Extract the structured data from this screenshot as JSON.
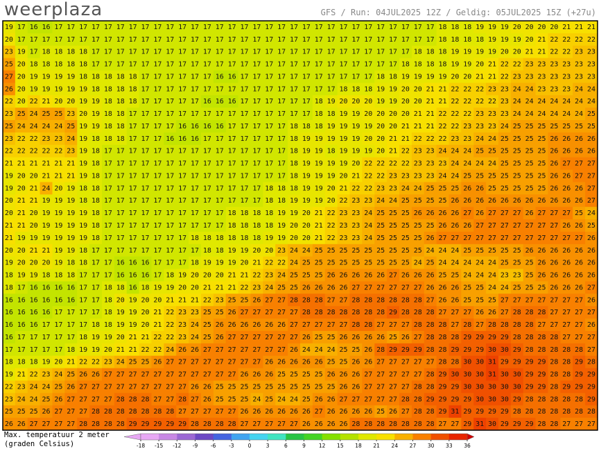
{
  "header": {
    "logo": "weerplaza",
    "info": "GFS / Run: 04JUL2025 12Z / Geldig: 05JUL2025 15Z (+27u)"
  },
  "legend": {
    "title": "Max. temperatuur 2 meter",
    "unit": "(graden Celsius)",
    "ticks": [
      -18,
      -15,
      -12,
      -9,
      -6,
      -3,
      0,
      3,
      6,
      9,
      12,
      15,
      18,
      21,
      24,
      27,
      30,
      33,
      36
    ],
    "colors": [
      "#e8a8f4",
      "#c888e4",
      "#9c68d4",
      "#6c48c4",
      "#4464e0",
      "#40a4f0",
      "#44d4f0",
      "#40e4c0",
      "#28c444",
      "#44d424",
      "#84e000",
      "#b4e200",
      "#e0e800",
      "#f8e000",
      "#f8b000",
      "#f88000",
      "#f05000",
      "#e82400",
      "#d00000"
    ]
  },
  "grid": [
    [
      19,
      17,
      16,
      16,
      17,
      17,
      17,
      17,
      17,
      17,
      17,
      17,
      17,
      17,
      17,
      17,
      17,
      17,
      17,
      17,
      17,
      17,
      17,
      17,
      17,
      17,
      17,
      17,
      17,
      17,
      17,
      17,
      17,
      17,
      17,
      18,
      18,
      18,
      19,
      19,
      19,
      20,
      20,
      20,
      20,
      21,
      21,
      21
    ],
    [
      20,
      17,
      17,
      17,
      17,
      17,
      17,
      17,
      17,
      17,
      17,
      17,
      17,
      17,
      17,
      17,
      17,
      17,
      17,
      17,
      17,
      17,
      17,
      17,
      17,
      17,
      17,
      17,
      17,
      17,
      17,
      17,
      17,
      17,
      17,
      18,
      18,
      18,
      18,
      19,
      19,
      19,
      20,
      21,
      22,
      22,
      22,
      22
    ],
    [
      23,
      19,
      17,
      18,
      18,
      18,
      18,
      17,
      17,
      17,
      17,
      17,
      17,
      17,
      17,
      17,
      17,
      17,
      17,
      17,
      17,
      17,
      17,
      17,
      17,
      17,
      17,
      17,
      17,
      17,
      17,
      17,
      17,
      18,
      18,
      18,
      19,
      19,
      19,
      19,
      20,
      20,
      21,
      21,
      22,
      22,
      23,
      23
    ],
    [
      25,
      20,
      18,
      18,
      18,
      18,
      18,
      17,
      17,
      17,
      17,
      17,
      17,
      17,
      17,
      17,
      17,
      17,
      17,
      17,
      17,
      17,
      17,
      17,
      17,
      17,
      17,
      17,
      17,
      17,
      17,
      17,
      18,
      18,
      18,
      18,
      19,
      19,
      20,
      21,
      22,
      22,
      23,
      23,
      23,
      23,
      23,
      23
    ],
    [
      27,
      20,
      19,
      19,
      19,
      19,
      18,
      18,
      18,
      18,
      18,
      17,
      17,
      17,
      17,
      17,
      17,
      16,
      16,
      17,
      17,
      17,
      17,
      17,
      17,
      17,
      17,
      17,
      17,
      17,
      18,
      18,
      19,
      19,
      19,
      19,
      20,
      20,
      21,
      21,
      22,
      23,
      23,
      23,
      23,
      23,
      23,
      23
    ],
    [
      26,
      20,
      19,
      19,
      19,
      19,
      19,
      18,
      18,
      18,
      18,
      17,
      17,
      17,
      17,
      17,
      17,
      17,
      17,
      17,
      17,
      17,
      17,
      17,
      17,
      17,
      17,
      18,
      18,
      18,
      19,
      19,
      20,
      20,
      21,
      21,
      22,
      22,
      22,
      23,
      23,
      24,
      24,
      23,
      23,
      23,
      24,
      24
    ],
    [
      22,
      20,
      22,
      21,
      20,
      20,
      19,
      19,
      18,
      18,
      18,
      17,
      17,
      17,
      17,
      17,
      16,
      16,
      16,
      17,
      17,
      17,
      17,
      17,
      17,
      18,
      19,
      20,
      20,
      20,
      19,
      19,
      20,
      20,
      21,
      21,
      22,
      22,
      22,
      22,
      23,
      24,
      24,
      24,
      24,
      24,
      24,
      24
    ],
    [
      23,
      25,
      24,
      25,
      25,
      23,
      20,
      19,
      18,
      18,
      17,
      17,
      17,
      17,
      17,
      17,
      17,
      17,
      17,
      17,
      17,
      17,
      17,
      17,
      17,
      18,
      18,
      19,
      19,
      20,
      20,
      20,
      20,
      21,
      21,
      22,
      22,
      22,
      23,
      23,
      23,
      24,
      24,
      24,
      24,
      24,
      24,
      25
    ],
    [
      25,
      24,
      24,
      24,
      24,
      25,
      19,
      19,
      18,
      18,
      17,
      17,
      17,
      17,
      16,
      16,
      16,
      16,
      17,
      17,
      17,
      17,
      17,
      18,
      18,
      18,
      19,
      19,
      19,
      19,
      20,
      20,
      21,
      21,
      21,
      22,
      22,
      23,
      23,
      23,
      24,
      25,
      25,
      25,
      25,
      25,
      25,
      25
    ],
    [
      23,
      22,
      22,
      23,
      23,
      24,
      19,
      18,
      18,
      18,
      17,
      17,
      17,
      16,
      16,
      16,
      17,
      17,
      17,
      17,
      17,
      17,
      17,
      18,
      19,
      19,
      19,
      19,
      19,
      20,
      20,
      21,
      21,
      22,
      22,
      22,
      23,
      23,
      24,
      24,
      25,
      25,
      25,
      25,
      26,
      26,
      26,
      26
    ],
    [
      22,
      22,
      22,
      22,
      22,
      23,
      19,
      18,
      17,
      17,
      17,
      17,
      17,
      17,
      17,
      17,
      17,
      17,
      17,
      17,
      17,
      17,
      17,
      18,
      19,
      19,
      18,
      19,
      19,
      19,
      20,
      21,
      22,
      23,
      23,
      24,
      24,
      24,
      25,
      25,
      25,
      25,
      25,
      25,
      26,
      26,
      26,
      26
    ],
    [
      21,
      21,
      21,
      21,
      21,
      21,
      19,
      18,
      17,
      17,
      17,
      17,
      17,
      17,
      17,
      17,
      17,
      17,
      17,
      17,
      17,
      17,
      17,
      18,
      19,
      19,
      19,
      19,
      20,
      22,
      22,
      22,
      22,
      23,
      23,
      23,
      24,
      24,
      24,
      24,
      25,
      25,
      25,
      25,
      26,
      27,
      27,
      27
    ],
    [
      19,
      20,
      20,
      21,
      21,
      21,
      19,
      18,
      17,
      17,
      17,
      17,
      17,
      17,
      17,
      17,
      17,
      17,
      17,
      17,
      17,
      17,
      17,
      18,
      19,
      19,
      19,
      20,
      21,
      22,
      22,
      23,
      23,
      23,
      23,
      24,
      24,
      25,
      25,
      25,
      25,
      25,
      25,
      25,
      26,
      26,
      27,
      27
    ],
    [
      19,
      20,
      21,
      24,
      20,
      19,
      18,
      18,
      17,
      17,
      17,
      17,
      17,
      17,
      17,
      17,
      17,
      17,
      17,
      17,
      17,
      18,
      18,
      18,
      19,
      19,
      20,
      21,
      22,
      22,
      23,
      23,
      24,
      24,
      25,
      25,
      25,
      26,
      26,
      25,
      25,
      25,
      25,
      25,
      26,
      26,
      26,
      27
    ],
    [
      20,
      21,
      21,
      19,
      19,
      19,
      18,
      18,
      17,
      17,
      17,
      17,
      17,
      17,
      17,
      17,
      17,
      17,
      17,
      17,
      17,
      18,
      18,
      19,
      19,
      19,
      20,
      22,
      23,
      23,
      24,
      24,
      25,
      25,
      25,
      25,
      26,
      26,
      26,
      26,
      26,
      26,
      26,
      26,
      26,
      26,
      26,
      27
    ],
    [
      20,
      21,
      20,
      19,
      19,
      19,
      19,
      18,
      17,
      17,
      17,
      17,
      17,
      17,
      17,
      17,
      17,
      17,
      18,
      18,
      18,
      18,
      19,
      19,
      20,
      21,
      22,
      23,
      23,
      24,
      25,
      25,
      25,
      26,
      26,
      26,
      26,
      27,
      26,
      27,
      27,
      27,
      26,
      27,
      27,
      27,
      25,
      24
    ],
    [
      21,
      21,
      20,
      19,
      19,
      19,
      19,
      18,
      17,
      17,
      17,
      17,
      17,
      17,
      17,
      17,
      17,
      17,
      18,
      18,
      18,
      18,
      19,
      20,
      20,
      21,
      22,
      23,
      23,
      24,
      25,
      25,
      25,
      25,
      25,
      26,
      26,
      26,
      27,
      27,
      27,
      27,
      27,
      27,
      27,
      26,
      26,
      25
    ],
    [
      21,
      19,
      19,
      19,
      19,
      19,
      19,
      18,
      17,
      17,
      17,
      17,
      17,
      17,
      17,
      18,
      18,
      18,
      18,
      18,
      18,
      19,
      19,
      20,
      20,
      21,
      22,
      23,
      23,
      24,
      25,
      25,
      25,
      25,
      26,
      27,
      27,
      27,
      27,
      27,
      27,
      27,
      27,
      27,
      27,
      27,
      27,
      26
    ],
    [
      20,
      20,
      21,
      21,
      19,
      19,
      18,
      17,
      17,
      17,
      17,
      17,
      17,
      17,
      17,
      17,
      18,
      18,
      19,
      19,
      20,
      20,
      23,
      24,
      24,
      25,
      25,
      25,
      25,
      25,
      25,
      25,
      25,
      25,
      24,
      24,
      24,
      25,
      25,
      25,
      25,
      25,
      26,
      26,
      26,
      26,
      26,
      26
    ],
    [
      19,
      20,
      20,
      20,
      19,
      18,
      18,
      17,
      17,
      16,
      16,
      16,
      17,
      17,
      17,
      18,
      19,
      19,
      19,
      20,
      21,
      22,
      22,
      24,
      25,
      25,
      25,
      25,
      25,
      25,
      25,
      25,
      25,
      24,
      25,
      24,
      24,
      24,
      24,
      24,
      25,
      25,
      25,
      26,
      26,
      26,
      26,
      26
    ],
    [
      18,
      19,
      19,
      18,
      18,
      18,
      17,
      17,
      17,
      16,
      16,
      16,
      17,
      18,
      19,
      20,
      20,
      20,
      21,
      21,
      22,
      23,
      24,
      25,
      25,
      25,
      26,
      26,
      26,
      26,
      26,
      27,
      26,
      26,
      26,
      25,
      25,
      24,
      24,
      24,
      23,
      23,
      25,
      26,
      26,
      26,
      26,
      26
    ],
    [
      18,
      17,
      16,
      16,
      16,
      16,
      17,
      17,
      18,
      18,
      16,
      18,
      19,
      19,
      20,
      20,
      21,
      21,
      21,
      22,
      23,
      24,
      25,
      25,
      26,
      26,
      26,
      26,
      27,
      27,
      27,
      27,
      27,
      27,
      26,
      26,
      26,
      25,
      25,
      24,
      24,
      25,
      25,
      25,
      26,
      26,
      26,
      27
    ],
    [
      16,
      16,
      16,
      16,
      16,
      16,
      17,
      17,
      18,
      20,
      19,
      20,
      20,
      21,
      21,
      21,
      22,
      23,
      25,
      25,
      26,
      27,
      27,
      28,
      28,
      28,
      27,
      27,
      28,
      28,
      28,
      28,
      28,
      28,
      27,
      26,
      26,
      25,
      25,
      25,
      27,
      27,
      27,
      27,
      27,
      27,
      27,
      26
    ],
    [
      16,
      16,
      16,
      16,
      17,
      17,
      17,
      17,
      18,
      19,
      19,
      20,
      21,
      22,
      23,
      23,
      25,
      25,
      26,
      27,
      27,
      27,
      27,
      27,
      28,
      28,
      28,
      28,
      28,
      28,
      28,
      29,
      28,
      28,
      28,
      27,
      27,
      27,
      26,
      26,
      27,
      28,
      28,
      28,
      27,
      27,
      27,
      27
    ],
    [
      16,
      16,
      16,
      17,
      17,
      17,
      17,
      18,
      18,
      19,
      19,
      20,
      21,
      22,
      23,
      24,
      25,
      26,
      26,
      26,
      26,
      26,
      26,
      27,
      27,
      27,
      27,
      27,
      28,
      28,
      27,
      27,
      27,
      28,
      28,
      28,
      27,
      28,
      27,
      28,
      28,
      28,
      28,
      27,
      27,
      27,
      27,
      26
    ],
    [
      16,
      17,
      17,
      17,
      17,
      17,
      18,
      19,
      19,
      20,
      21,
      21,
      22,
      22,
      23,
      24,
      25,
      26,
      27,
      27,
      27,
      27,
      27,
      27,
      26,
      25,
      25,
      26,
      26,
      26,
      26,
      25,
      26,
      27,
      28,
      28,
      28,
      29,
      29,
      29,
      29,
      28,
      28,
      28,
      28,
      27,
      27,
      27
    ],
    [
      17,
      17,
      17,
      17,
      17,
      18,
      19,
      19,
      20,
      21,
      21,
      22,
      22,
      24,
      26,
      26,
      27,
      27,
      27,
      27,
      27,
      27,
      27,
      26,
      24,
      24,
      24,
      25,
      25,
      26,
      28,
      29,
      29,
      29,
      28,
      28,
      29,
      29,
      29,
      30,
      30,
      29,
      28,
      28,
      28,
      28,
      28,
      27
    ],
    [
      18,
      18,
      18,
      19,
      20,
      21,
      22,
      22,
      23,
      24,
      25,
      25,
      26,
      27,
      27,
      27,
      27,
      27,
      27,
      27,
      27,
      26,
      26,
      26,
      26,
      26,
      25,
      25,
      26,
      26,
      27,
      27,
      27,
      27,
      27,
      28,
      28,
      30,
      30,
      31,
      29,
      29,
      29,
      29,
      28,
      28,
      29,
      28
    ],
    [
      19,
      21,
      22,
      23,
      24,
      25,
      26,
      26,
      27,
      27,
      27,
      27,
      27,
      27,
      27,
      27,
      27,
      27,
      27,
      26,
      26,
      26,
      25,
      25,
      25,
      25,
      26,
      26,
      26,
      27,
      27,
      27,
      27,
      27,
      28,
      29,
      30,
      30,
      30,
      31,
      30,
      30,
      29,
      29,
      28,
      28,
      29,
      29
    ],
    [
      22,
      23,
      24,
      24,
      25,
      26,
      27,
      27,
      27,
      27,
      27,
      27,
      27,
      27,
      27,
      26,
      26,
      25,
      25,
      25,
      25,
      25,
      25,
      25,
      25,
      25,
      25,
      26,
      26,
      27,
      27,
      27,
      27,
      28,
      28,
      29,
      29,
      30,
      30,
      30,
      30,
      30,
      29,
      29,
      28,
      29,
      29,
      29
    ],
    [
      23,
      24,
      24,
      25,
      26,
      27,
      27,
      27,
      27,
      28,
      28,
      28,
      27,
      27,
      28,
      27,
      26,
      25,
      25,
      25,
      24,
      25,
      24,
      24,
      25,
      26,
      26,
      27,
      27,
      27,
      27,
      27,
      28,
      28,
      29,
      29,
      29,
      29,
      30,
      30,
      30,
      29,
      28,
      28,
      28,
      28,
      28,
      29
    ],
    [
      25,
      25,
      25,
      26,
      27,
      27,
      27,
      28,
      28,
      28,
      28,
      28,
      28,
      28,
      27,
      27,
      27,
      27,
      27,
      26,
      26,
      26,
      26,
      26,
      26,
      27,
      26,
      26,
      26,
      26,
      25,
      26,
      27,
      28,
      28,
      29,
      31,
      29,
      29,
      29,
      29,
      28,
      28,
      28,
      28,
      28,
      28,
      28
    ],
    [
      26,
      26,
      27,
      27,
      27,
      27,
      28,
      28,
      28,
      28,
      29,
      29,
      29,
      29,
      29,
      28,
      28,
      28,
      28,
      27,
      27,
      27,
      27,
      27,
      26,
      26,
      26,
      26,
      28,
      28,
      28,
      28,
      28,
      28,
      28,
      27,
      27,
      29,
      31,
      30,
      29,
      29,
      29,
      28,
      28,
      27,
      27,
      27
    ]
  ]
}
